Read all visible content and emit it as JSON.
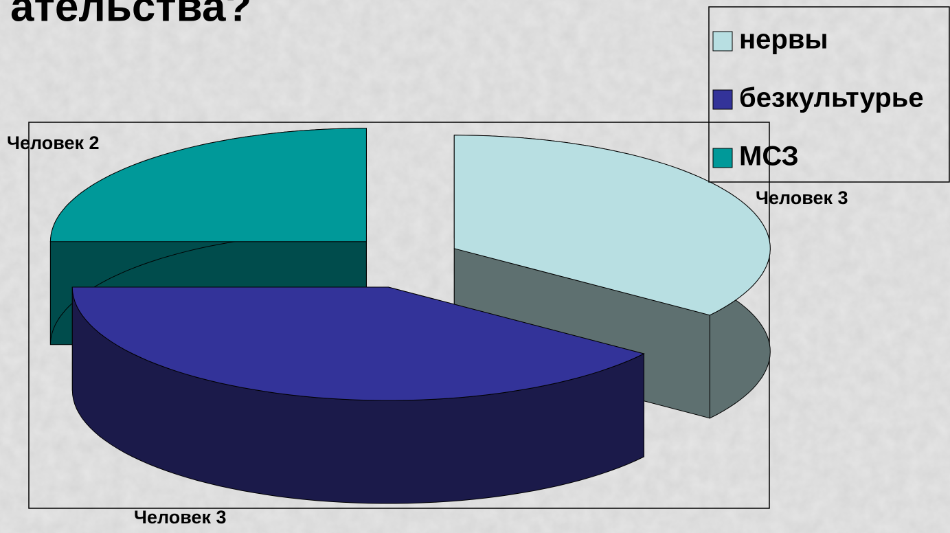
{
  "chart_data": {
    "type": "pie3d",
    "title": "ательства?",
    "categories": [
      "нервы",
      "безкультурье",
      "МСЗ"
    ],
    "values": [
      35,
      40,
      25
    ],
    "value_labels": [
      "Человек 3",
      "Человек 3",
      "Человек 2"
    ],
    "colors": [
      "#b8dfe2",
      "#333399",
      "#009999"
    ],
    "side_colors": [
      "#5e7070",
      "#1b1a4a",
      "#004c4c"
    ],
    "legend": "top-right"
  }
}
